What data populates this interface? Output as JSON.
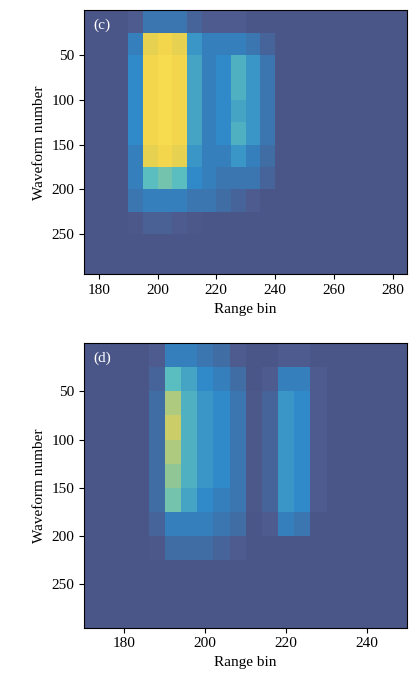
{
  "chart_data": [
    {
      "type": "heatmap",
      "title": "(c)",
      "x_label": "Range bin",
      "y_label": "Waveform number",
      "xlim": [
        175,
        285
      ],
      "ylim": [
        295,
        0
      ],
      "xticks": [
        180,
        200,
        220,
        240,
        260,
        280
      ],
      "yticks": [
        50,
        100,
        150,
        200,
        250
      ],
      "x_edges": [
        175,
        180,
        185,
        190,
        195,
        200,
        205,
        210,
        215,
        220,
        225,
        230,
        235,
        240,
        245,
        250,
        255,
        260,
        265,
        270,
        275,
        280,
        285
      ],
      "y_edges": [
        0,
        25,
        50,
        75,
        100,
        125,
        150,
        175,
        200,
        225,
        250,
        275,
        295
      ],
      "cells": [
        [
          0.1,
          0.1,
          0.1,
          0.15,
          0.3,
          0.3,
          0.3,
          0.2,
          0.15,
          0.15,
          0.15,
          0.1,
          0.1,
          0.1,
          0.1,
          0.1,
          0.1,
          0.1,
          0.1,
          0.1,
          0.1,
          0.1
        ],
        [
          0.1,
          0.1,
          0.1,
          0.35,
          0.85,
          0.9,
          0.85,
          0.45,
          0.35,
          0.35,
          0.35,
          0.3,
          0.2,
          0.1,
          0.1,
          0.1,
          0.1,
          0.1,
          0.1,
          0.1,
          0.1,
          0.1
        ],
        [
          0.1,
          0.1,
          0.1,
          0.4,
          0.9,
          0.95,
          0.9,
          0.5,
          0.35,
          0.4,
          0.55,
          0.45,
          0.3,
          0.1,
          0.1,
          0.1,
          0.1,
          0.1,
          0.1,
          0.1,
          0.1,
          0.1
        ],
        [
          0.1,
          0.1,
          0.1,
          0.4,
          0.9,
          0.95,
          0.9,
          0.5,
          0.35,
          0.4,
          0.55,
          0.45,
          0.3,
          0.1,
          0.1,
          0.1,
          0.1,
          0.1,
          0.1,
          0.1,
          0.1,
          0.1
        ],
        [
          0.1,
          0.1,
          0.1,
          0.4,
          0.9,
          0.95,
          0.9,
          0.5,
          0.35,
          0.4,
          0.5,
          0.45,
          0.3,
          0.1,
          0.1,
          0.1,
          0.1,
          0.1,
          0.1,
          0.1,
          0.1,
          0.1
        ],
        [
          0.1,
          0.1,
          0.1,
          0.4,
          0.9,
          0.95,
          0.9,
          0.5,
          0.35,
          0.4,
          0.55,
          0.45,
          0.3,
          0.1,
          0.1,
          0.1,
          0.1,
          0.1,
          0.1,
          0.1,
          0.1,
          0.1
        ],
        [
          0.1,
          0.1,
          0.1,
          0.35,
          0.85,
          0.9,
          0.85,
          0.45,
          0.35,
          0.35,
          0.45,
          0.35,
          0.25,
          0.1,
          0.1,
          0.1,
          0.1,
          0.1,
          0.1,
          0.1,
          0.1,
          0.1
        ],
        [
          0.1,
          0.1,
          0.1,
          0.35,
          0.6,
          0.65,
          0.6,
          0.4,
          0.35,
          0.3,
          0.3,
          0.3,
          0.2,
          0.1,
          0.1,
          0.1,
          0.1,
          0.1,
          0.1,
          0.1,
          0.1,
          0.1
        ],
        [
          0.1,
          0.1,
          0.1,
          0.3,
          0.35,
          0.35,
          0.35,
          0.3,
          0.3,
          0.25,
          0.2,
          0.15,
          0.1,
          0.1,
          0.1,
          0.1,
          0.1,
          0.1,
          0.1,
          0.1,
          0.1,
          0.1
        ],
        [
          0.1,
          0.1,
          0.1,
          0.12,
          0.18,
          0.18,
          0.15,
          0.12,
          0.1,
          0.1,
          0.1,
          0.1,
          0.1,
          0.1,
          0.1,
          0.1,
          0.1,
          0.1,
          0.1,
          0.1,
          0.1,
          0.1
        ],
        [
          0.1,
          0.1,
          0.1,
          0.1,
          0.1,
          0.1,
          0.1,
          0.1,
          0.1,
          0.1,
          0.1,
          0.1,
          0.1,
          0.1,
          0.1,
          0.1,
          0.1,
          0.1,
          0.1,
          0.1,
          0.1,
          0.1
        ],
        [
          0.1,
          0.1,
          0.1,
          0.1,
          0.1,
          0.1,
          0.1,
          0.1,
          0.1,
          0.1,
          0.1,
          0.1,
          0.1,
          0.1,
          0.1,
          0.1,
          0.1,
          0.1,
          0.1,
          0.1,
          0.1,
          0.1
        ]
      ]
    },
    {
      "type": "heatmap",
      "title": "(d)",
      "x_label": "Range bin",
      "y_label": "Waveform number",
      "xlim": [
        170,
        250
      ],
      "ylim": [
        295,
        0
      ],
      "xticks": [
        180,
        200,
        220,
        240
      ],
      "yticks": [
        50,
        100,
        150,
        200,
        250
      ],
      "x_edges": [
        170,
        174,
        178,
        182,
        186,
        190,
        194,
        198,
        202,
        206,
        210,
        214,
        218,
        222,
        226,
        230,
        234,
        238,
        242,
        246,
        250
      ],
      "y_edges": [
        0,
        25,
        50,
        75,
        100,
        125,
        150,
        175,
        200,
        225,
        250,
        275,
        295
      ],
      "cells": [
        [
          0.1,
          0.1,
          0.1,
          0.1,
          0.15,
          0.35,
          0.35,
          0.3,
          0.25,
          0.15,
          0.1,
          0.1,
          0.15,
          0.15,
          0.1,
          0.1,
          0.1,
          0.1,
          0.1,
          0.1
        ],
        [
          0.1,
          0.1,
          0.1,
          0.1,
          0.2,
          0.6,
          0.5,
          0.4,
          0.35,
          0.25,
          0.1,
          0.15,
          0.35,
          0.35,
          0.15,
          0.1,
          0.1,
          0.1,
          0.1,
          0.1
        ],
        [
          0.1,
          0.1,
          0.1,
          0.1,
          0.25,
          0.75,
          0.55,
          0.45,
          0.4,
          0.3,
          0.12,
          0.2,
          0.45,
          0.4,
          0.15,
          0.1,
          0.1,
          0.1,
          0.1,
          0.1
        ],
        [
          0.1,
          0.1,
          0.1,
          0.1,
          0.25,
          0.8,
          0.55,
          0.45,
          0.4,
          0.3,
          0.12,
          0.2,
          0.45,
          0.4,
          0.15,
          0.1,
          0.1,
          0.1,
          0.1,
          0.1
        ],
        [
          0.1,
          0.1,
          0.1,
          0.1,
          0.25,
          0.75,
          0.55,
          0.45,
          0.4,
          0.3,
          0.12,
          0.2,
          0.45,
          0.4,
          0.15,
          0.1,
          0.1,
          0.1,
          0.1,
          0.1
        ],
        [
          0.1,
          0.1,
          0.1,
          0.1,
          0.25,
          0.7,
          0.55,
          0.45,
          0.4,
          0.3,
          0.12,
          0.2,
          0.45,
          0.4,
          0.15,
          0.1,
          0.1,
          0.1,
          0.1,
          0.1
        ],
        [
          0.1,
          0.1,
          0.1,
          0.1,
          0.25,
          0.65,
          0.5,
          0.4,
          0.35,
          0.3,
          0.12,
          0.2,
          0.45,
          0.4,
          0.15,
          0.1,
          0.1,
          0.1,
          0.1,
          0.1
        ],
        [
          0.1,
          0.1,
          0.1,
          0.1,
          0.2,
          0.35,
          0.35,
          0.35,
          0.3,
          0.25,
          0.1,
          0.15,
          0.35,
          0.3,
          0.1,
          0.1,
          0.1,
          0.1,
          0.1,
          0.1
        ],
        [
          0.1,
          0.1,
          0.1,
          0.1,
          0.12,
          0.25,
          0.25,
          0.25,
          0.2,
          0.15,
          0.1,
          0.1,
          0.1,
          0.1,
          0.1,
          0.1,
          0.1,
          0.1,
          0.1,
          0.1
        ],
        [
          0.1,
          0.1,
          0.1,
          0.1,
          0.1,
          0.1,
          0.1,
          0.1,
          0.1,
          0.1,
          0.1,
          0.1,
          0.1,
          0.1,
          0.1,
          0.1,
          0.1,
          0.1,
          0.1,
          0.1
        ],
        [
          0.1,
          0.1,
          0.1,
          0.1,
          0.1,
          0.1,
          0.1,
          0.1,
          0.1,
          0.1,
          0.1,
          0.1,
          0.1,
          0.1,
          0.1,
          0.1,
          0.1,
          0.1,
          0.1,
          0.1
        ],
        [
          0.1,
          0.1,
          0.1,
          0.1,
          0.1,
          0.1,
          0.1,
          0.1,
          0.1,
          0.1,
          0.1,
          0.1,
          0.1,
          0.1,
          0.1,
          0.1,
          0.1,
          0.1,
          0.1,
          0.1
        ]
      ]
    }
  ]
}
